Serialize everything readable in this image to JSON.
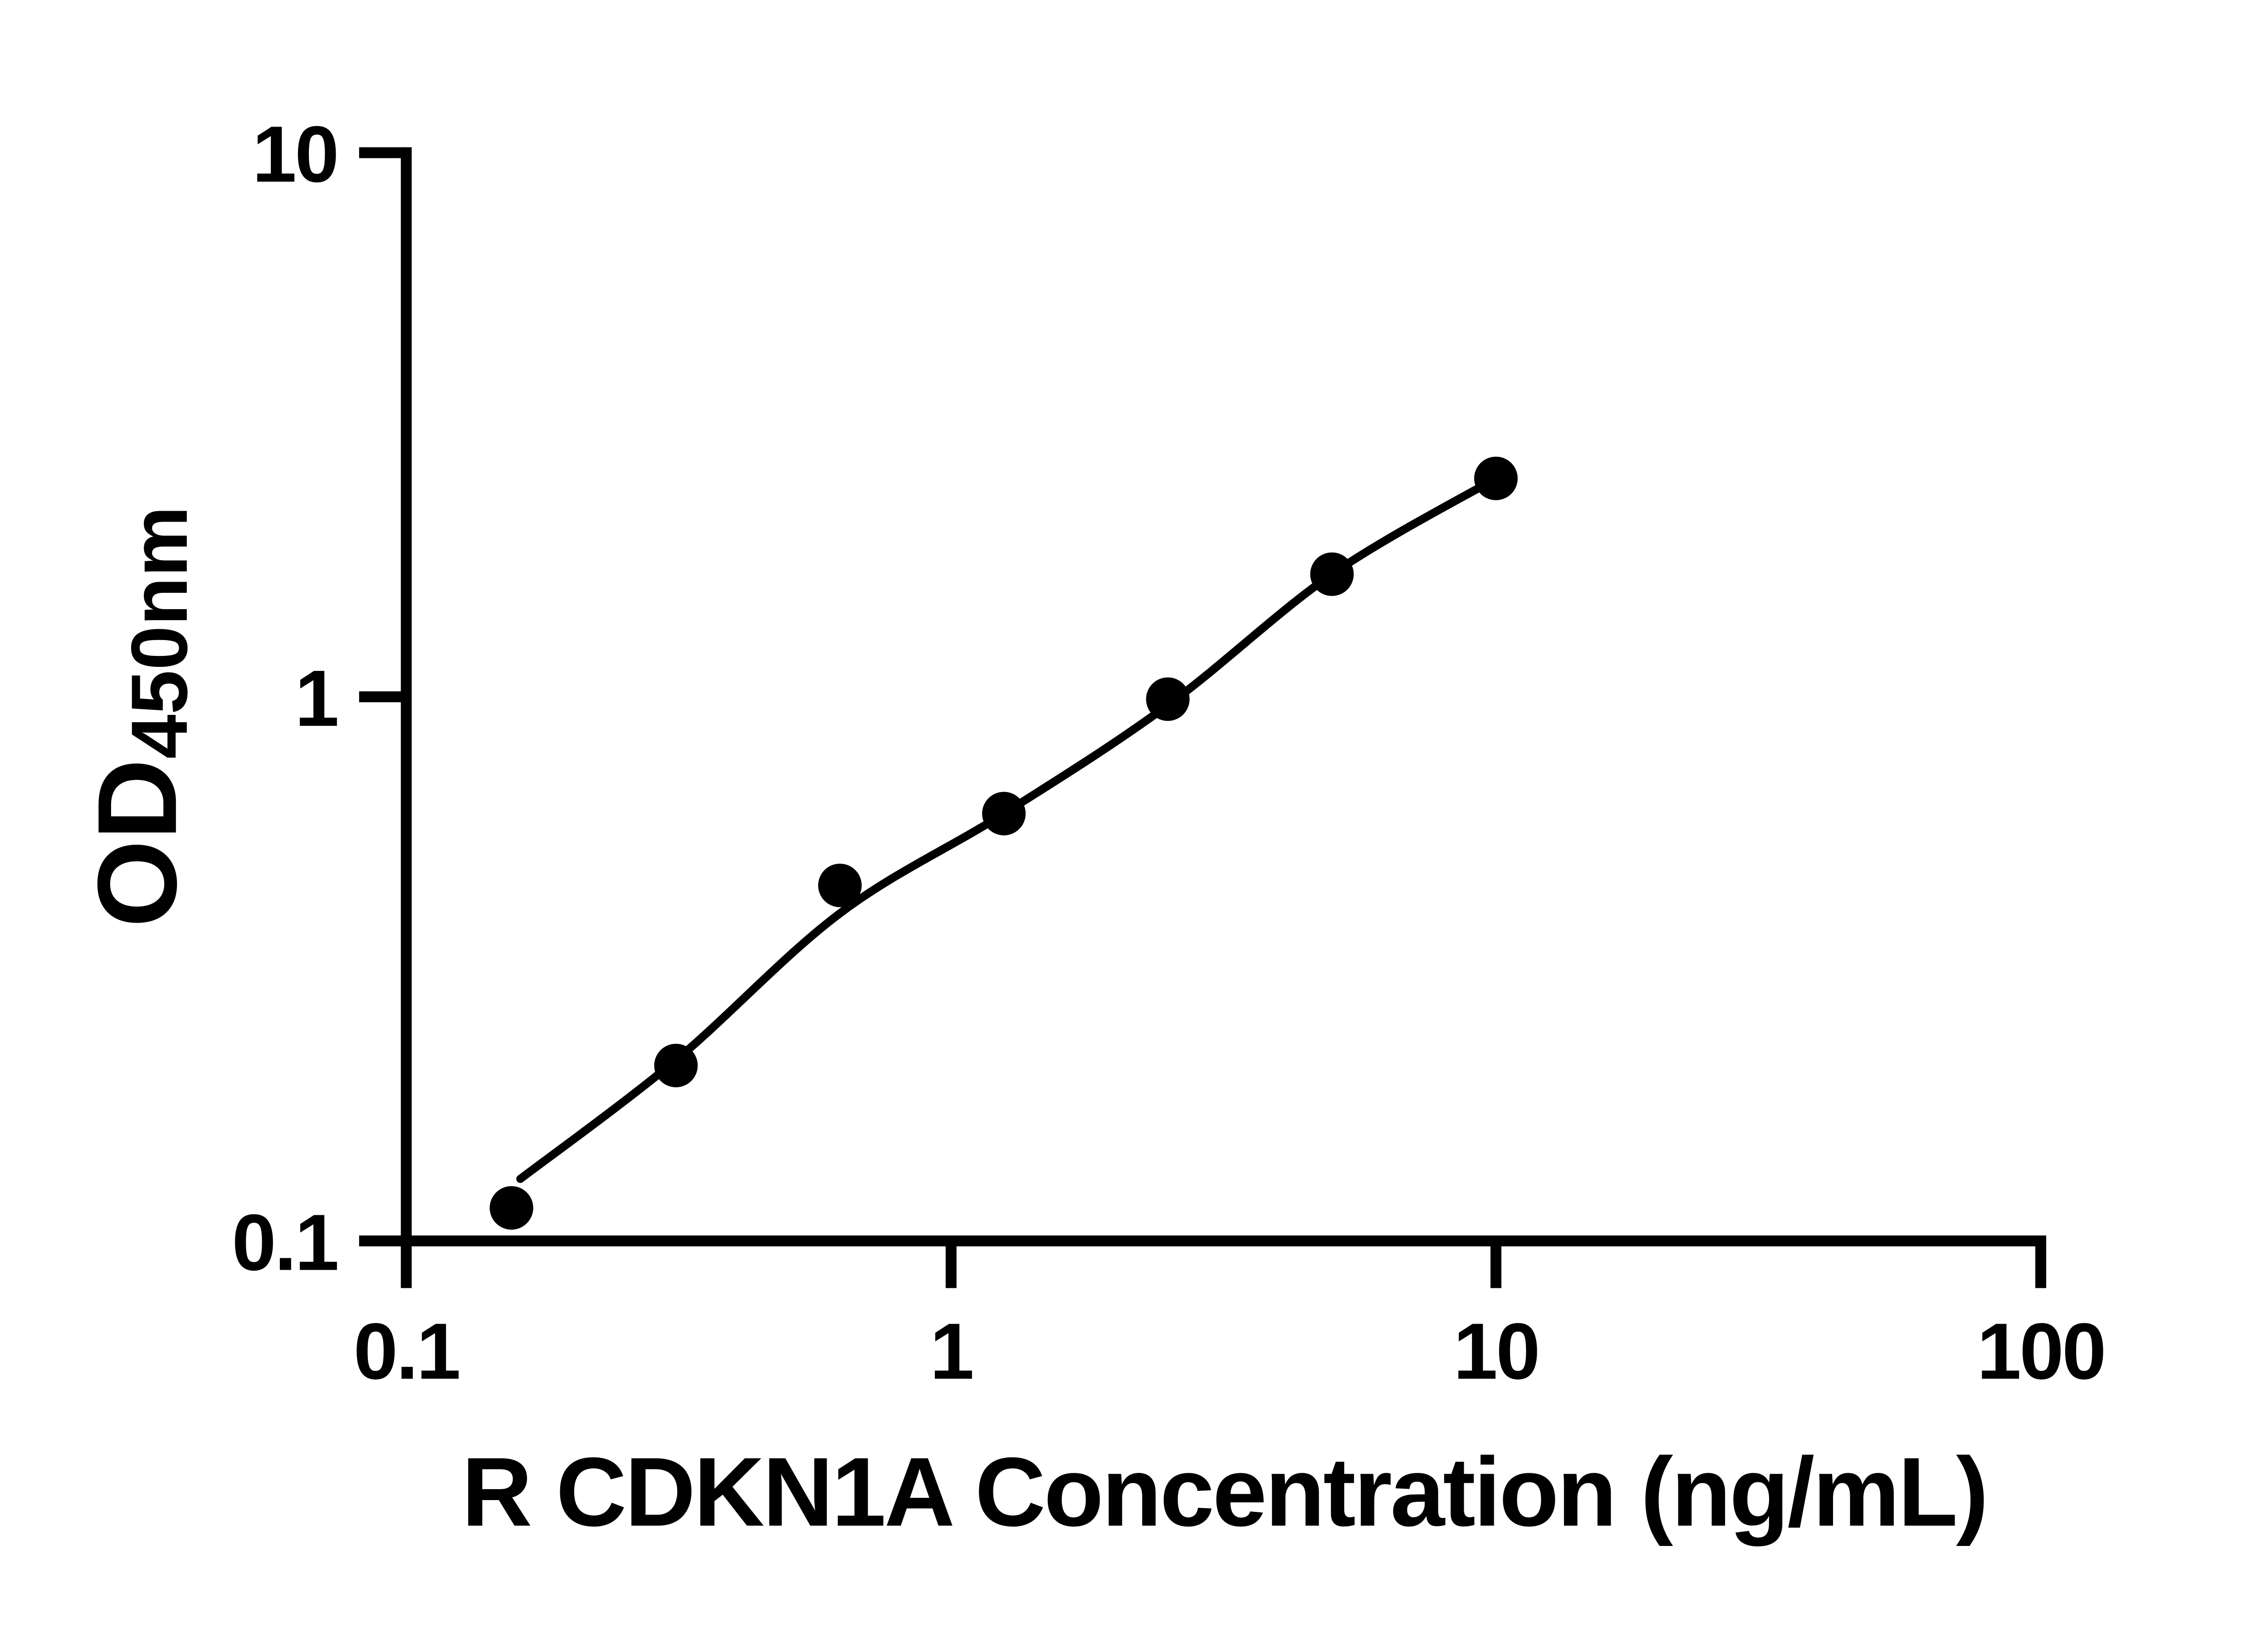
{
  "figure": {
    "background_color": "#ffffff",
    "ink_color": "#000000"
  },
  "chart_data": {
    "type": "scatter",
    "title": "",
    "xlabel": "R CDKN1A Concentration (ng/mL)",
    "ylabel_main": "OD",
    "ylabel_sub": "450nm",
    "x_scale": "log10",
    "y_scale": "log10",
    "xlim": [
      0.1,
      100
    ],
    "ylim": [
      0.1,
      10
    ],
    "grid": false,
    "legend": null,
    "x_ticks": [
      {
        "value": 0.1,
        "label": "0.1"
      },
      {
        "value": 1,
        "label": "1"
      },
      {
        "value": 10,
        "label": "10"
      },
      {
        "value": 100,
        "label": "100"
      }
    ],
    "y_ticks": [
      {
        "value": 10,
        "label": "10"
      },
      {
        "value": 1,
        "label": "1"
      },
      {
        "value": 0.1,
        "label": "0.1"
      }
    ],
    "series": [
      {
        "name": "standard-curve-points",
        "marker": "filled-circle",
        "color": "#000000",
        "points": [
          {
            "x": 0.156,
            "y": 0.115
          },
          {
            "x": 0.3125,
            "y": 0.21
          },
          {
            "x": 0.625,
            "y": 0.45
          },
          {
            "x": 1.25,
            "y": 0.61
          },
          {
            "x": 2.5,
            "y": 0.99
          },
          {
            "x": 5,
            "y": 1.68
          },
          {
            "x": 10,
            "y": 2.52
          }
        ]
      }
    ],
    "fit_curve": {
      "name": "fitted-standard-curve",
      "color": "#000000",
      "points": [
        {
          "x": 0.162,
          "y": 0.13
        },
        {
          "x": 0.3125,
          "y": 0.215
        },
        {
          "x": 0.625,
          "y": 0.4
        },
        {
          "x": 1.25,
          "y": 0.61
        },
        {
          "x": 2.5,
          "y": 0.965
        },
        {
          "x": 5,
          "y": 1.68
        },
        {
          "x": 10,
          "y": 2.52
        }
      ]
    }
  }
}
